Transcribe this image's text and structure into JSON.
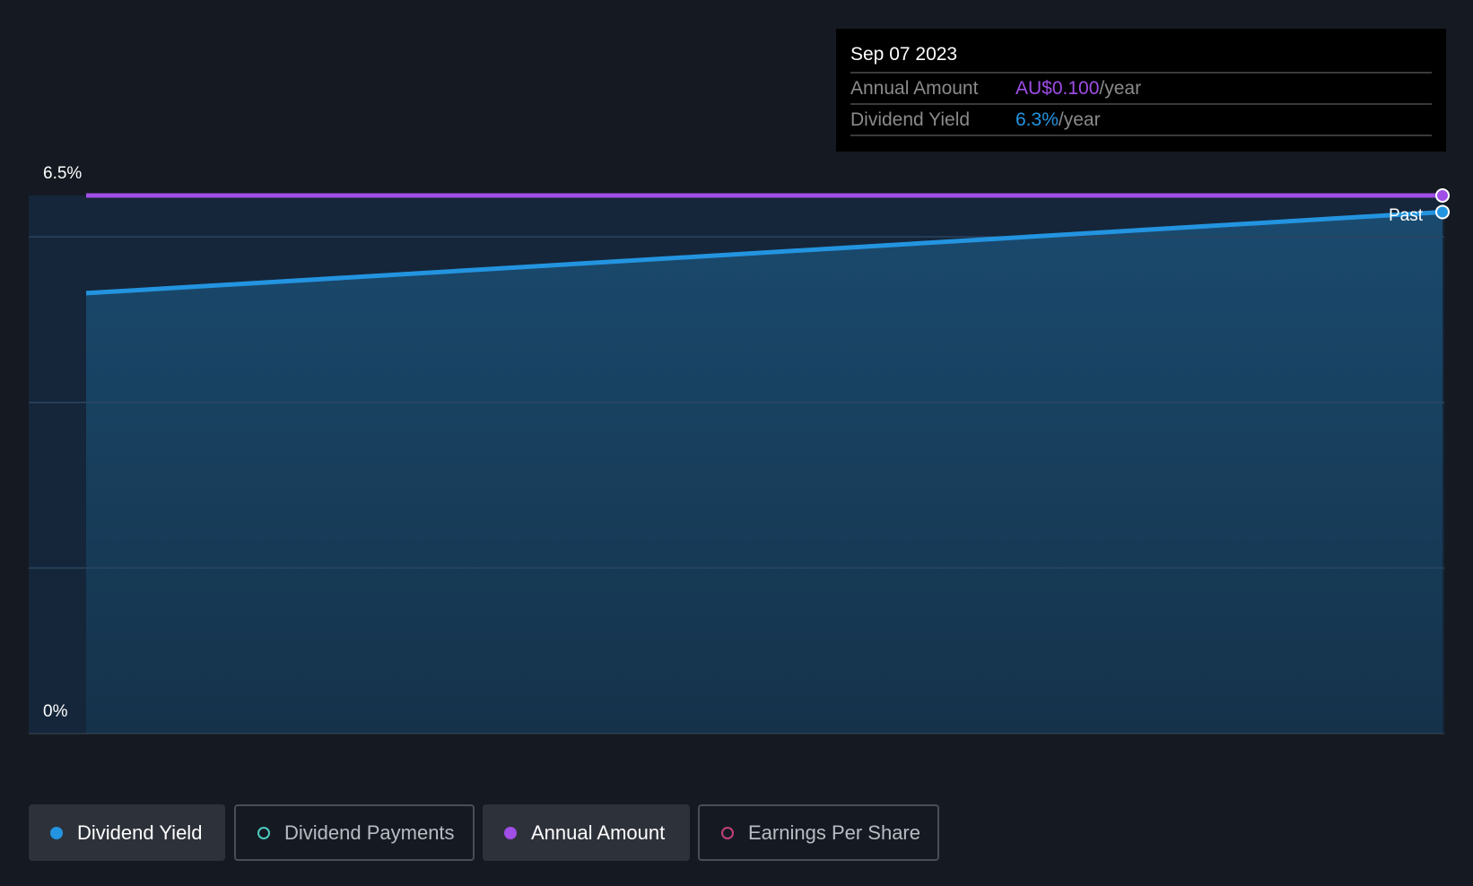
{
  "tooltip": {
    "date": "Sep 07 2023",
    "rows": [
      {
        "label": "Annual Amount",
        "value": "AU$0.100",
        "unit": "/year",
        "color": "#a04ee6"
      },
      {
        "label": "Dividend Yield",
        "value": "6.3%",
        "unit": "/year",
        "color": "#2394e0"
      }
    ]
  },
  "chart_data": {
    "type": "line",
    "y_axis": {
      "min": 0,
      "max": 6.5,
      "tick_labels": [
        "6.5%",
        "0%"
      ],
      "gridlines": [
        2,
        4,
        6
      ]
    },
    "x_range_label": "Past",
    "series": [
      {
        "name": "Dividend Yield",
        "color": "#2394e0",
        "values": [
          5.32,
          6.3
        ],
        "unit": "%"
      },
      {
        "name": "Annual Amount",
        "color": "#a04ee6",
        "values": [
          0.1,
          0.1
        ],
        "unit": "AU$"
      }
    ]
  },
  "legend": [
    {
      "label": "Dividend Yield",
      "active": true,
      "color": "#2394e0"
    },
    {
      "label": "Dividend Payments",
      "active": false,
      "color": "#4ec9c0"
    },
    {
      "label": "Annual Amount",
      "active": true,
      "color": "#a04ee6"
    },
    {
      "label": "Earnings Per Share",
      "active": false,
      "color": "#c2407a"
    }
  ]
}
